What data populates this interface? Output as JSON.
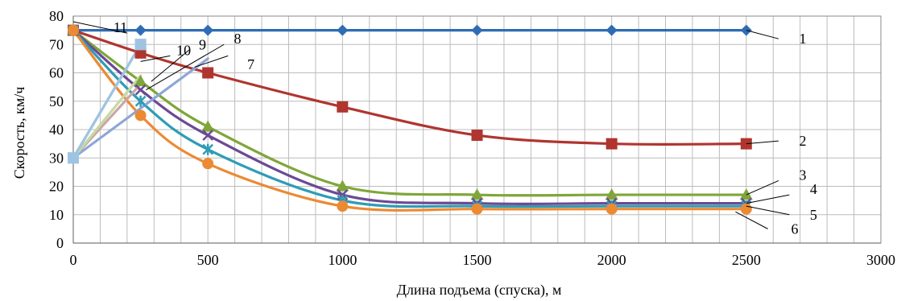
{
  "chart_data": {
    "type": "line",
    "xlabel": "Длина подъема (спуска), м",
    "ylabel": "Скорость, км/ч",
    "xlim": [
      0,
      3000
    ],
    "ylim": [
      0,
      80
    ],
    "xticks": [
      0,
      500,
      1000,
      1500,
      2000,
      2500,
      3000
    ],
    "yticks": [
      0,
      10,
      20,
      30,
      40,
      50,
      60,
      70,
      80
    ],
    "grid": true,
    "legend": "none",
    "series": [
      {
        "label": "1",
        "color": "#2e6db4",
        "marker": "diamond",
        "x": [
          0,
          250,
          500,
          1000,
          1500,
          2000,
          2500
        ],
        "y": [
          75,
          75,
          75,
          75,
          75,
          75,
          75
        ]
      },
      {
        "label": "2",
        "color": "#b0352f",
        "marker": "square",
        "x": [
          0,
          250,
          500,
          1000,
          1500,
          2000,
          2500
        ],
        "y": [
          75,
          67,
          60,
          48,
          38,
          35,
          35
        ]
      },
      {
        "label": "3",
        "color": "#7fa63a",
        "marker": "triangle",
        "x": [
          0,
          250,
          500,
          1000,
          1500,
          2000,
          2500
        ],
        "y": [
          75,
          57,
          41,
          20,
          17,
          17,
          17
        ]
      },
      {
        "label": "4",
        "color": "#6b4a94",
        "marker": "x",
        "x": [
          0,
          250,
          500,
          1000,
          1500,
          2000,
          2500
        ],
        "y": [
          75,
          54,
          38,
          17,
          14,
          14,
          14
        ]
      },
      {
        "label": "5",
        "color": "#2f9cb5",
        "marker": "asterisk",
        "x": [
          0,
          250,
          500,
          1000,
          1500,
          2000,
          2500
        ],
        "y": [
          75,
          50,
          33,
          15,
          13,
          13,
          13
        ]
      },
      {
        "label": "6",
        "color": "#ec8a33",
        "marker": "circle",
        "x": [
          0,
          250,
          500,
          1000,
          1500,
          2000,
          2500
        ],
        "y": [
          75,
          45,
          28,
          13,
          12,
          12,
          12
        ]
      },
      {
        "label": "7",
        "color": "#8ea6d8",
        "marker": "none",
        "x": [
          0,
          500
        ],
        "y": [
          30,
          65
        ]
      },
      {
        "label": "8",
        "color": "#c8a8a6",
        "marker": "none",
        "x": [
          0,
          250
        ],
        "y": [
          30,
          56
        ]
      },
      {
        "label": "9",
        "color": "#c8d8a4",
        "marker": "none",
        "x": [
          0,
          250
        ],
        "y": [
          30,
          59
        ]
      },
      {
        "label": "10",
        "color": "#a8c8e0",
        "marker": "square",
        "x": [
          0,
          250
        ],
        "y": [
          30,
          70
        ]
      },
      {
        "label": "11",
        "color": "#9ec4e2",
        "marker": "square",
        "x": [
          0,
          250
        ],
        "y": [
          30,
          70
        ]
      }
    ]
  }
}
